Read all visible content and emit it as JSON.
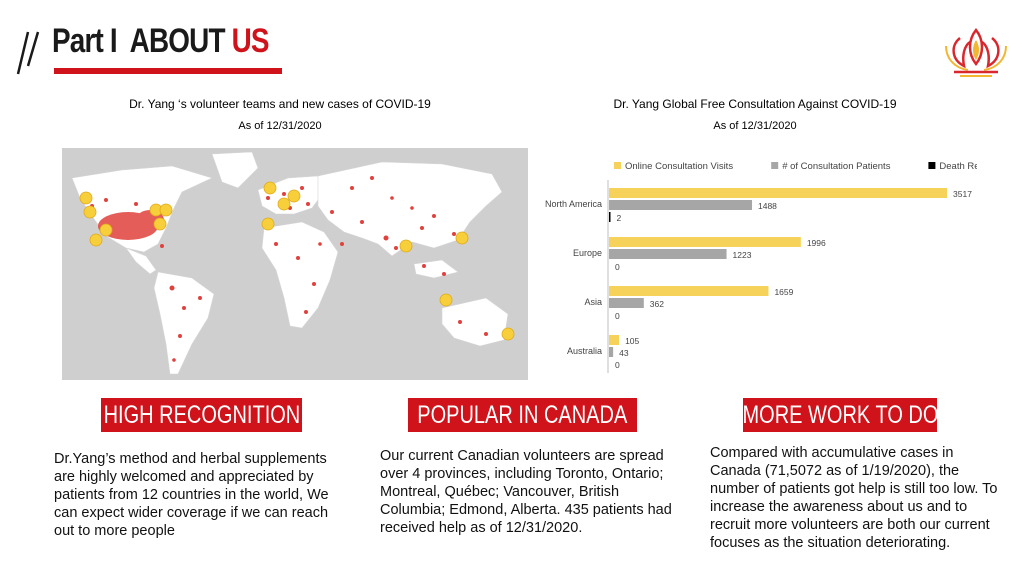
{
  "header": {
    "title_part": "Part I",
    "title_about": "ABOUT",
    "title_us": "US"
  },
  "left_panel": {
    "caption": "Dr. Yang ‘s volunteer teams and new cases of COVID-19",
    "date": "As of 12/31/2020"
  },
  "right_panel": {
    "caption": "Dr. Yang Global Free Consultation Against COVID-19",
    "date": "As of 12/31/2020"
  },
  "chart_data": {
    "type": "bar",
    "orientation": "horizontal",
    "categories": [
      "North America",
      "Europe",
      "Asia",
      "Australia"
    ],
    "series": [
      {
        "name": "Online Consultation Visits",
        "values": [
          3517,
          1996,
          1659,
          105
        ],
        "color": "#f7d25a"
      },
      {
        "name": "# of Consultation Patients",
        "values": [
          1488,
          1223,
          362,
          43
        ],
        "color": "#a6a6a6"
      },
      {
        "name": "Death Report",
        "values": [
          2,
          0,
          0,
          0
        ],
        "color": "#000000"
      }
    ],
    "legend_position": "top",
    "xlim": [
      0,
      3600
    ]
  },
  "sections": [
    {
      "banner": "HIGH RECOGNITION",
      "text": "Dr.Yang’s method and herbal supplements are highly welcomed and appreciated by patients from 12 countries in the world, We can expect wider coverage if we can reach out to more people"
    },
    {
      "banner": "POPULAR IN CANADA",
      "text": "Our current Canadian volunteers are spread over 4 provinces, including Toronto, Ontario; Montreal, Québec; Vancouver, British Columbia; Edmond, Alberta. 435 patients had received help as of 12/31/2020."
    },
    {
      "banner": "MORE WORK TO DO",
      "text": "Compared with accumulative cases in Canada (71,5072 as of 1/19/2020), the number of patients got help is still too low. To increase the awareness about us and to recruit more volunteers are both our current focuses as the situation deteriorating."
    }
  ],
  "colors": {
    "accent_red": "#d0121b",
    "map_land": "#ffffff",
    "map_ocean": "#cfcfcf",
    "case_dot": "#e0413c",
    "volunteer_marker": "#f7cf3a"
  }
}
